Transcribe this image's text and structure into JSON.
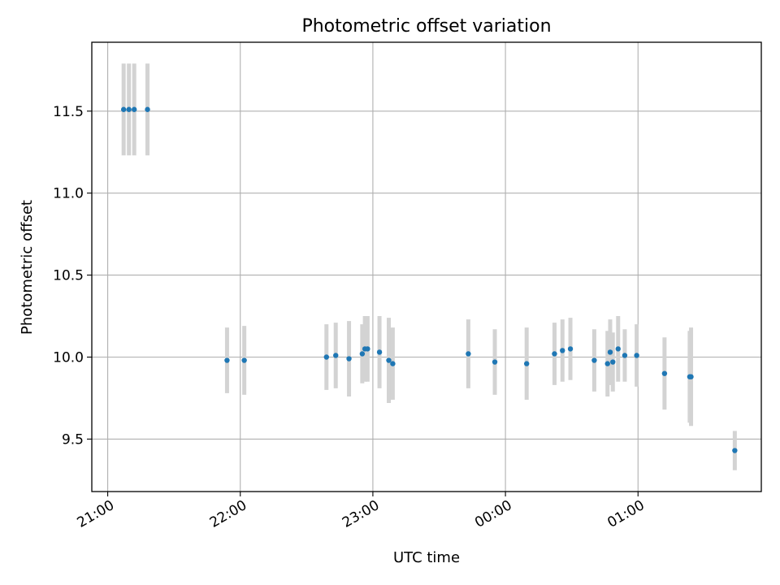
{
  "chart_data": {
    "type": "scatter",
    "title": "Photometric offset variation",
    "xlabel": "UTC time",
    "ylabel": "Photometric offset",
    "x_axis": {
      "unit": "hours since 21:00 UTC",
      "range": [
        -0.12,
        4.93
      ],
      "ticks": [
        {
          "value": 0,
          "label": "21:00"
        },
        {
          "value": 1,
          "label": "22:00"
        },
        {
          "value": 2,
          "label": "23:00"
        },
        {
          "value": 3,
          "label": "00:00"
        },
        {
          "value": 4,
          "label": "01:00"
        }
      ]
    },
    "y_axis": {
      "range": [
        9.18,
        11.92
      ],
      "ticks": [
        {
          "value": 9.5,
          "label": "9.5"
        },
        {
          "value": 10.0,
          "label": "10.0"
        },
        {
          "value": 10.5,
          "label": "10.5"
        },
        {
          "value": 11.0,
          "label": "11.0"
        },
        {
          "value": 11.5,
          "label": "11.5"
        }
      ]
    },
    "grid": true,
    "colors": {
      "marker": "#1f77b4",
      "errorbar": "#d3d3d3",
      "grid": "#b0b0b0",
      "axes": "#000000"
    },
    "points": [
      {
        "x": 0.12,
        "y": 11.51,
        "err": 0.28
      },
      {
        "x": 0.16,
        "y": 11.51,
        "err": 0.28
      },
      {
        "x": 0.2,
        "y": 11.51,
        "err": 0.28
      },
      {
        "x": 0.3,
        "y": 11.51,
        "err": 0.28
      },
      {
        "x": 0.9,
        "y": 9.98,
        "err": 0.2
      },
      {
        "x": 1.03,
        "y": 9.98,
        "err": 0.21
      },
      {
        "x": 1.65,
        "y": 10.0,
        "err": 0.2
      },
      {
        "x": 1.72,
        "y": 10.01,
        "err": 0.2
      },
      {
        "x": 1.82,
        "y": 9.99,
        "err": 0.23
      },
      {
        "x": 1.92,
        "y": 10.02,
        "err": 0.18
      },
      {
        "x": 1.94,
        "y": 10.05,
        "err": 0.2
      },
      {
        "x": 1.96,
        "y": 10.05,
        "err": 0.2
      },
      {
        "x": 2.05,
        "y": 10.03,
        "err": 0.22
      },
      {
        "x": 2.12,
        "y": 9.98,
        "err": 0.26
      },
      {
        "x": 2.15,
        "y": 9.96,
        "err": 0.22
      },
      {
        "x": 2.72,
        "y": 10.02,
        "err": 0.21
      },
      {
        "x": 2.92,
        "y": 9.97,
        "err": 0.2
      },
      {
        "x": 3.16,
        "y": 9.96,
        "err": 0.22
      },
      {
        "x": 3.37,
        "y": 10.02,
        "err": 0.19
      },
      {
        "x": 3.43,
        "y": 10.04,
        "err": 0.19
      },
      {
        "x": 3.49,
        "y": 10.05,
        "err": 0.19
      },
      {
        "x": 3.67,
        "y": 9.98,
        "err": 0.19
      },
      {
        "x": 3.77,
        "y": 9.96,
        "err": 0.2
      },
      {
        "x": 3.79,
        "y": 10.03,
        "err": 0.2
      },
      {
        "x": 3.81,
        "y": 9.97,
        "err": 0.18
      },
      {
        "x": 3.85,
        "y": 10.05,
        "err": 0.2
      },
      {
        "x": 3.9,
        "y": 10.01,
        "err": 0.16
      },
      {
        "x": 3.99,
        "y": 10.01,
        "err": 0.19
      },
      {
        "x": 4.2,
        "y": 9.9,
        "err": 0.22
      },
      {
        "x": 4.39,
        "y": 9.88,
        "err": 0.28
      },
      {
        "x": 4.4,
        "y": 9.88,
        "err": 0.3
      },
      {
        "x": 4.73,
        "y": 9.43,
        "err": 0.12
      }
    ]
  }
}
